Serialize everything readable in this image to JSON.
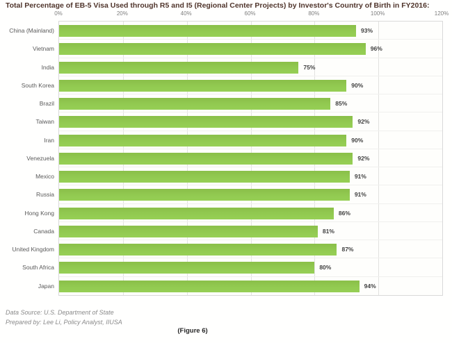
{
  "title": "Total Percentage of EB-5 Visa Used through R5 and I5 (Regional Center Projects) by Investor's Country of Birth in FY2016:",
  "chart_data": {
    "type": "bar",
    "orientation": "horizontal",
    "title": "Total Percentage of EB-5 Visa Used through R5 and I5 (Regional Center Projects) by Investor's Country of Birth in FY2016:",
    "categories": [
      "China (Mainland)",
      "Vietnam",
      "India",
      "South Korea",
      "Brazil",
      "Taiwan",
      "Iran",
      "Venezuela",
      "Mexico",
      "Russia",
      "Hong Kong",
      "Canada",
      "United Kingdom",
      "South Africa",
      "Japan"
    ],
    "values": [
      93,
      96,
      75,
      90,
      85,
      92,
      90,
      92,
      91,
      91,
      86,
      81,
      87,
      80,
      94
    ],
    "value_labels": [
      "93%",
      "96%",
      "75%",
      "90%",
      "85%",
      "92%",
      "90%",
      "92%",
      "91%",
      "91%",
      "86%",
      "81%",
      "87%",
      "80%",
      "94%"
    ],
    "xlabel": "",
    "ylabel": "",
    "xlim": [
      0,
      120
    ],
    "x_ticks": [
      "0%",
      "20%",
      "40%",
      "60%",
      "80%",
      "100%",
      "120%"
    ],
    "x_tick_values": [
      0,
      20,
      40,
      60,
      80,
      100,
      120
    ],
    "axis_labels_position": "top",
    "grid": "vertical",
    "legend": "none",
    "bar_color": "#92ca51",
    "gridline_color": "#e2e2e0",
    "tick_label_color": "#7f7f7f",
    "category_label_color": "#595959",
    "value_label_color": "#3f3f3f",
    "title_color": "#4f342b"
  },
  "footer": {
    "line1": "Data Source: U.S. Department of State",
    "line2": "Prepared by: Lee Li, Policy Analyst, IIUSA",
    "figure_caption": "(Figure 6)"
  }
}
